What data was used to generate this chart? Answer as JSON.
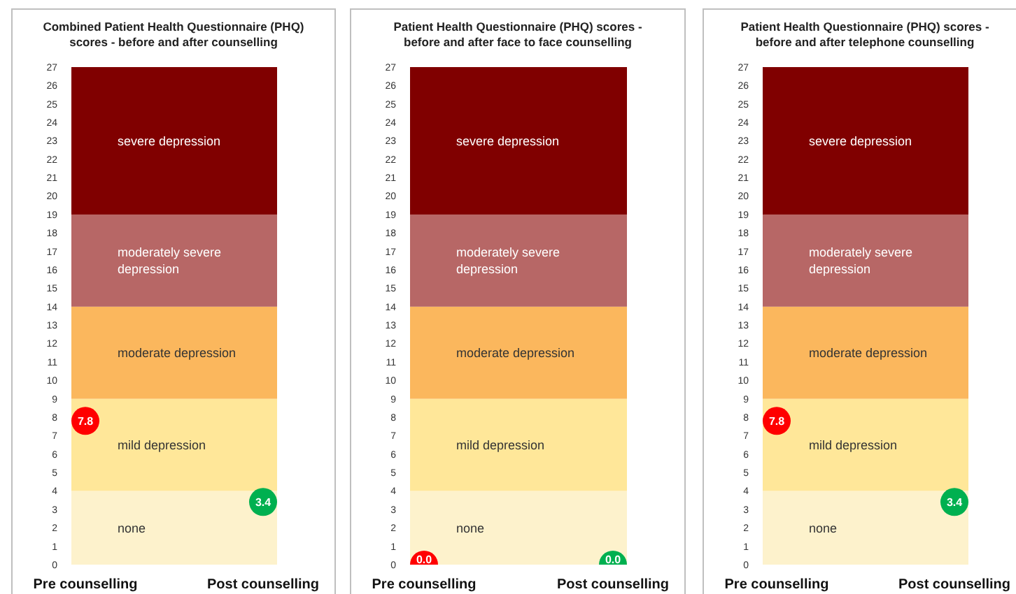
{
  "chart_data": [
    {
      "type": "scatter",
      "title": "Combined Patient Health Questionnaire (PHQ) scores - before and after counselling",
      "categories": [
        "Pre counselling",
        "Post counselling"
      ],
      "values": [
        7.8,
        3.4
      ],
      "colors": [
        "#ff0000",
        "#00b050"
      ],
      "data_labels": true,
      "marker": "circle",
      "grid": false,
      "ylim": [
        0,
        27
      ],
      "yticks": [
        0,
        1,
        2,
        3,
        4,
        5,
        6,
        7,
        8,
        9,
        10,
        11,
        12,
        13,
        14,
        15,
        16,
        17,
        18,
        19,
        20,
        21,
        22,
        23,
        24,
        25,
        26,
        27
      ],
      "bands": [
        {
          "axis": "y",
          "from": 0,
          "to": 4,
          "label": "none",
          "color": "#fdf2cc"
        },
        {
          "axis": "y",
          "from": 4,
          "to": 9,
          "label": "mild depression",
          "color": "#ffe799"
        },
        {
          "axis": "y",
          "from": 9,
          "to": 14,
          "label": "moderate depression",
          "color": "#fbb75d"
        },
        {
          "axis": "y",
          "from": 14,
          "to": 19,
          "label": "moderately severe depression",
          "color": "#b76766"
        },
        {
          "axis": "y",
          "from": 19,
          "to": 27,
          "label": "severe depression",
          "color": "#800000"
        }
      ]
    },
    {
      "type": "scatter",
      "title": "Patient Health Questionnaire (PHQ) scores - before and after face to face counselling",
      "categories": [
        "Pre counselling",
        "Post counselling"
      ],
      "values": [
        0.0,
        0.0
      ],
      "value_labels": [
        "0.0",
        "0.0"
      ],
      "colors": [
        "#ff0000",
        "#00b050"
      ],
      "marker": "circle",
      "grid": false,
      "ylim": [
        0,
        27
      ],
      "yticks": [
        0,
        1,
        2,
        3,
        4,
        5,
        6,
        7,
        8,
        9,
        10,
        11,
        12,
        13,
        14,
        15,
        16,
        17,
        18,
        19,
        20,
        21,
        22,
        23,
        24,
        25,
        26,
        27
      ],
      "bands": [
        {
          "axis": "y",
          "from": 0,
          "to": 4,
          "label": "none",
          "color": "#fdf2cc"
        },
        {
          "axis": "y",
          "from": 4,
          "to": 9,
          "label": "mild depression",
          "color": "#ffe799"
        },
        {
          "axis": "y",
          "from": 9,
          "to": 14,
          "label": "moderate depression",
          "color": "#fbb75d"
        },
        {
          "axis": "y",
          "from": 14,
          "to": 19,
          "label": "moderately severe depression",
          "color": "#b76766"
        },
        {
          "axis": "y",
          "from": 19,
          "to": 27,
          "label": "severe depression",
          "color": "#800000"
        }
      ]
    },
    {
      "type": "scatter",
      "title": "Patient Health Questionnaire (PHQ) scores - before and after telephone counselling",
      "categories": [
        "Pre counselling",
        "Post counselling"
      ],
      "values": [
        7.8,
        3.4
      ],
      "colors": [
        "#ff0000",
        "#00b050"
      ],
      "data_labels": true,
      "marker": "circle",
      "grid": false,
      "ylim": [
        0,
        27
      ],
      "yticks": [
        0,
        1,
        2,
        3,
        4,
        5,
        6,
        7,
        8,
        9,
        10,
        11,
        12,
        13,
        14,
        15,
        16,
        17,
        18,
        19,
        20,
        21,
        22,
        23,
        24,
        25,
        26,
        27
      ],
      "bands": [
        {
          "axis": "y",
          "from": 0,
          "to": 4,
          "label": "none",
          "color": "#fdf2cc"
        },
        {
          "axis": "y",
          "from": 4,
          "to": 9,
          "label": "mild depression",
          "color": "#ffe799"
        },
        {
          "axis": "y",
          "from": 9,
          "to": 14,
          "label": "moderate depression",
          "color": "#fbb75d"
        },
        {
          "axis": "y",
          "from": 14,
          "to": 19,
          "label": "moderately severe depression",
          "color": "#b76766"
        },
        {
          "axis": "y",
          "from": 19,
          "to": 27,
          "label": "severe depression",
          "color": "#800000"
        }
      ]
    }
  ]
}
